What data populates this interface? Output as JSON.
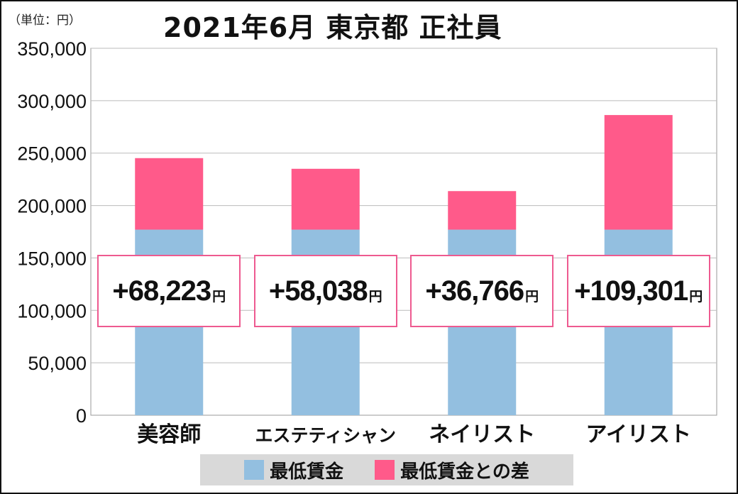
{
  "unit_note": "（単位：円）",
  "title": "2021年6月 東京都 正社員",
  "colors": {
    "base": "#93bfe0",
    "diff": "#ff5a8a",
    "box_border": "#ee5a90",
    "grid": "#bbbbbb"
  },
  "chart_data": {
    "type": "bar",
    "stacked": true,
    "title": "2021年6月 東京都 正社員",
    "categories": [
      "美容師",
      "エステティシャン",
      "ネイリスト",
      "アイリスト"
    ],
    "series": [
      {
        "name": "最低賃金",
        "values": [
          177000,
          177000,
          177000,
          177000
        ]
      },
      {
        "name": "最低賃金との差",
        "values": [
          68223,
          58038,
          36766,
          109301
        ]
      }
    ],
    "difference_labels": [
      "+68,223",
      "+58,038",
      "+36,766",
      "+109,301"
    ],
    "difference_unit": "円",
    "yticks": [
      "0",
      "50,000",
      "100,000",
      "150,000",
      "200,000",
      "250,000",
      "300,000",
      "350,000"
    ],
    "ylim": [
      0,
      350000
    ],
    "grid": true,
    "legend": "bottom"
  }
}
